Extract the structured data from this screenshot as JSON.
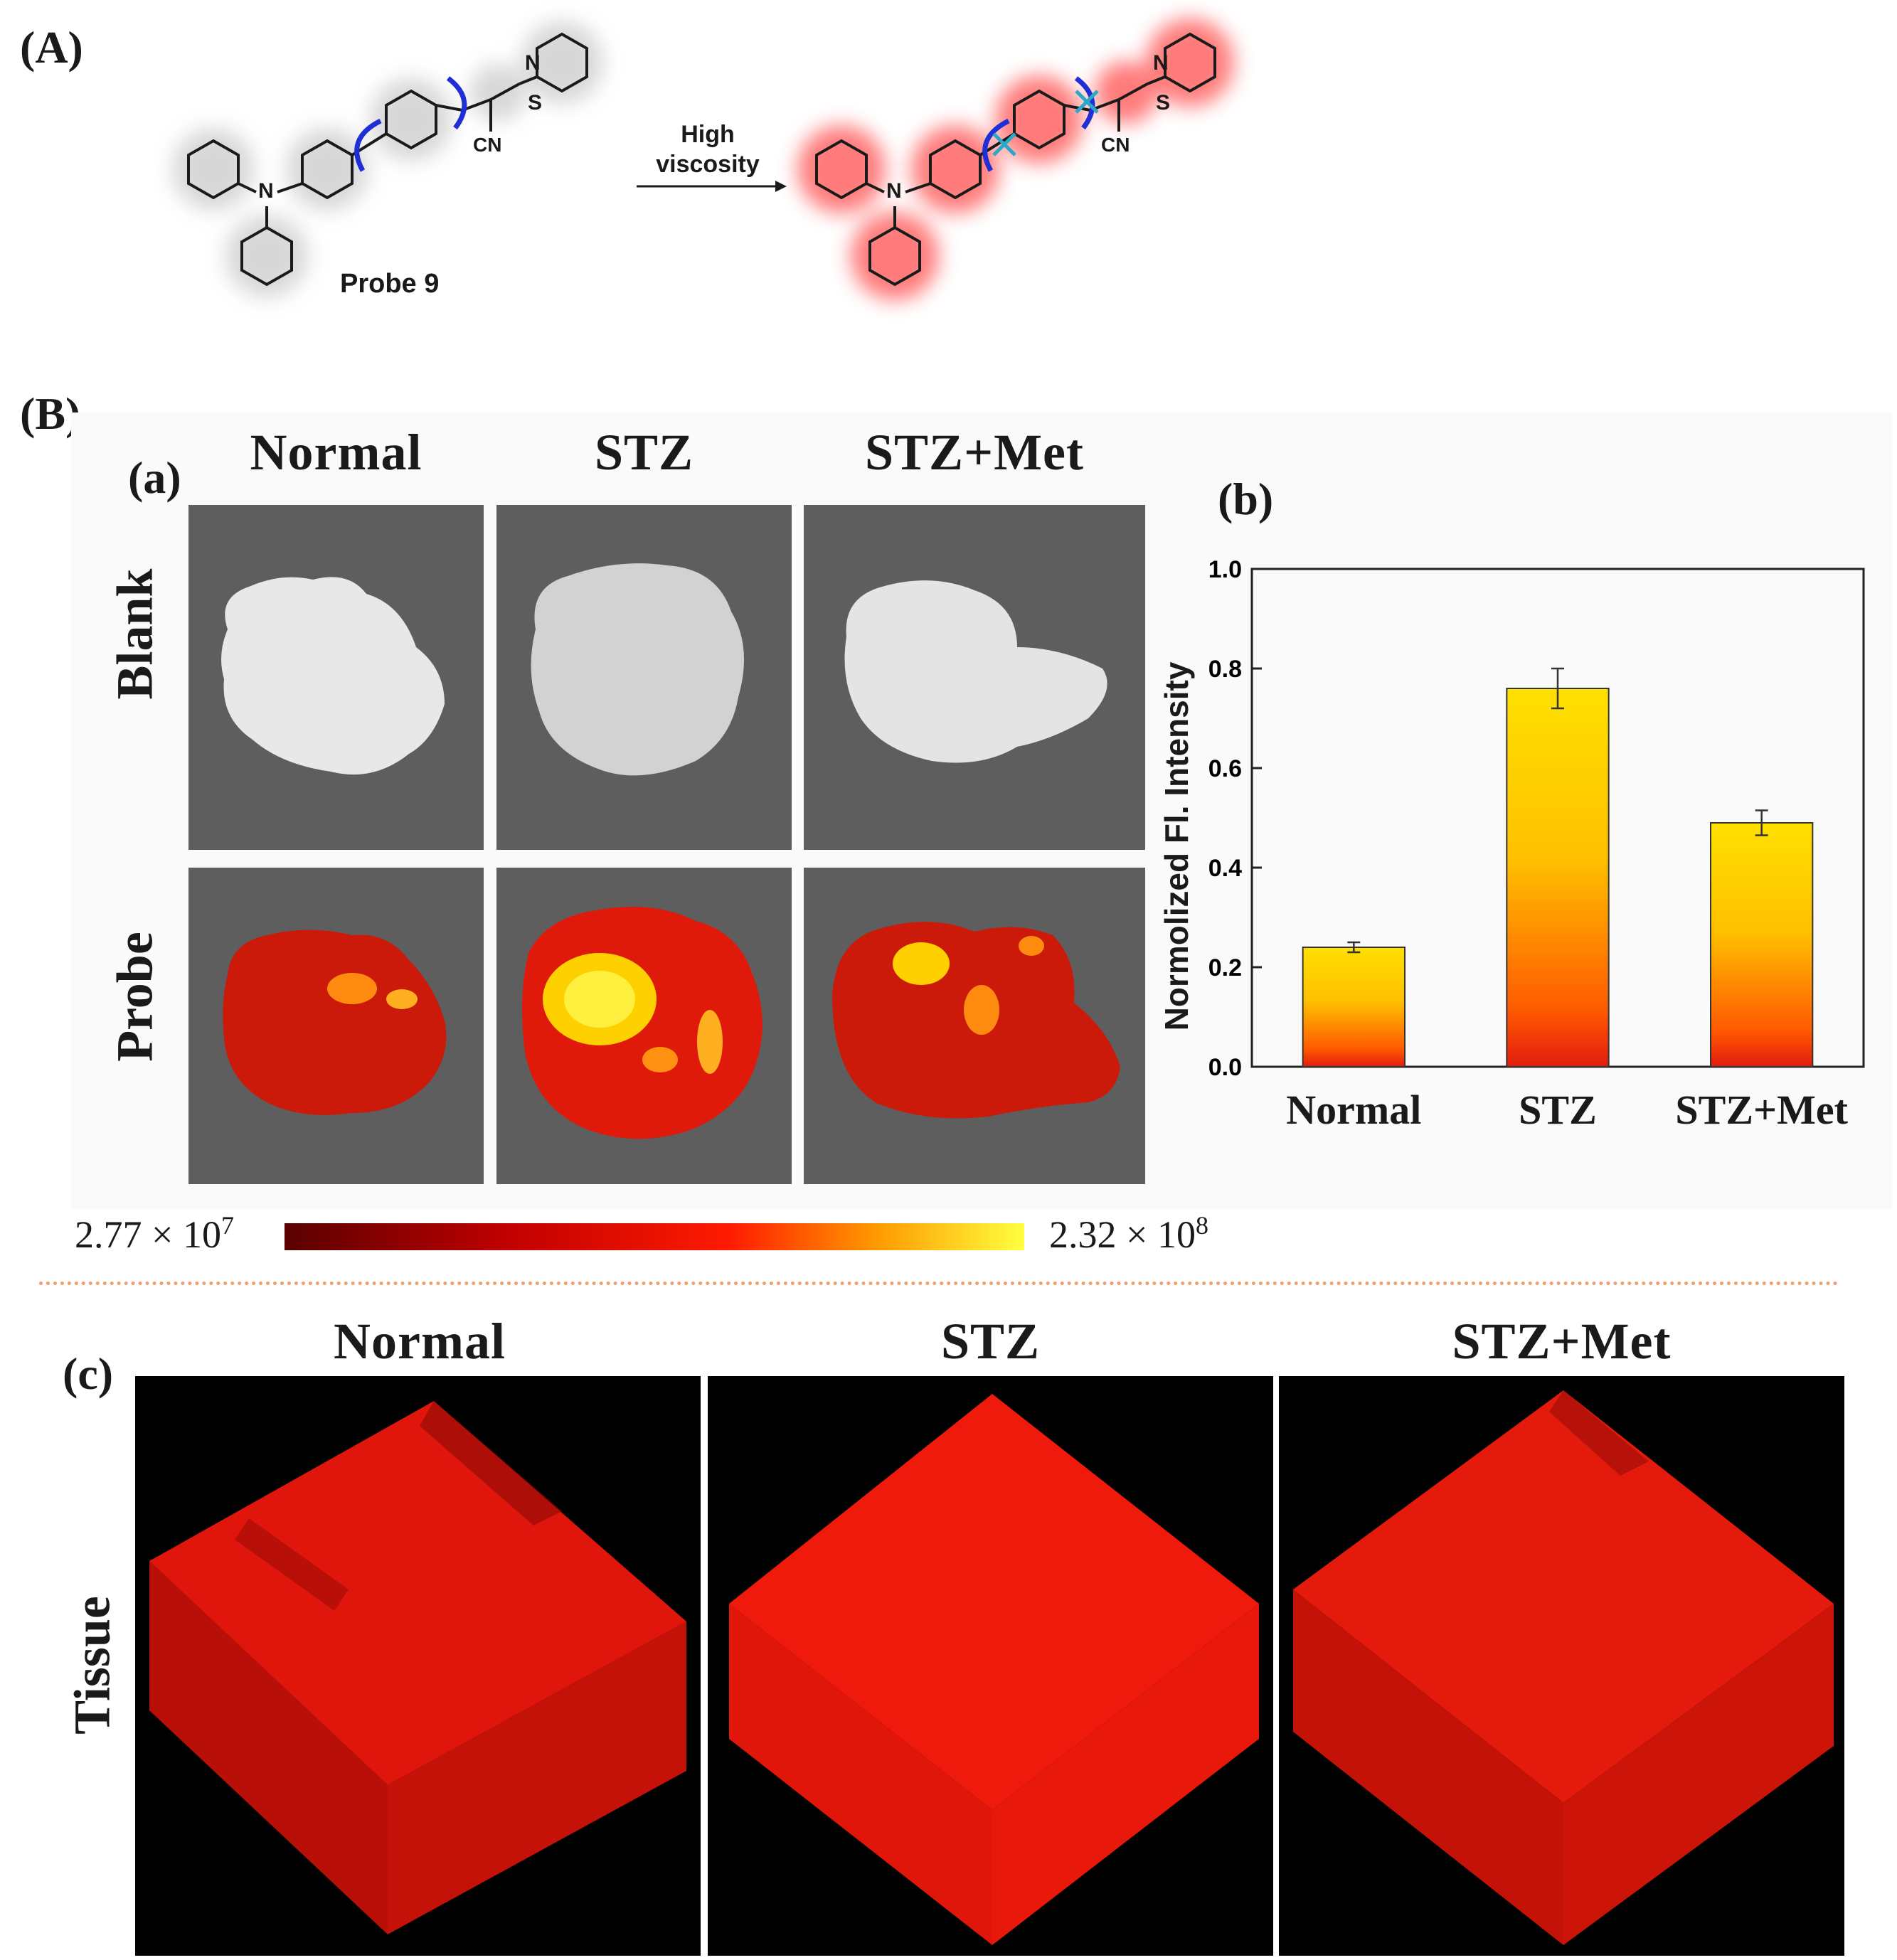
{
  "panel_a": {
    "label": "(A)",
    "probe_label": "Probe 9",
    "arrow_text_line1": "High",
    "arrow_text_line2": "viscosity",
    "atom_labels": {
      "n": "N",
      "s": "S",
      "cn": "CN"
    }
  },
  "panel_b": {
    "label": "(B)",
    "sub_a_label": "(a)",
    "sub_b_label": "(b)",
    "sub_c_label": "(c)",
    "columns": [
      "Normal",
      "STZ",
      "STZ+Met"
    ],
    "rows": [
      "Blank",
      "Probe"
    ],
    "colorbar": {
      "min_mantissa": "2.77 × 10",
      "min_exp": "7",
      "max_mantissa": "2.32 × 10",
      "max_exp": "8"
    },
    "tissue_row_label": "Tissue",
    "tissue_columns": [
      "Normal",
      "STZ",
      "STZ+Met"
    ]
  },
  "colors": {
    "probe_red": "#e31b0e",
    "probe_yellow": "#ffe000",
    "tile_gray": "#5e5e5e",
    "divider": "#f0a070"
  },
  "chart_data": {
    "type": "bar",
    "categories": [
      "Normal",
      "STZ",
      "STZ+Met"
    ],
    "values": [
      0.24,
      0.76,
      0.49
    ],
    "errors": [
      0.01,
      0.04,
      0.025
    ],
    "ylabel": "Normolized Fl. Intensity",
    "xlabel": "",
    "ylim": [
      0.0,
      1.0
    ],
    "yticks": [
      "0.0",
      "0.2",
      "0.4",
      "0.6",
      "0.8",
      "1.0"
    ]
  }
}
